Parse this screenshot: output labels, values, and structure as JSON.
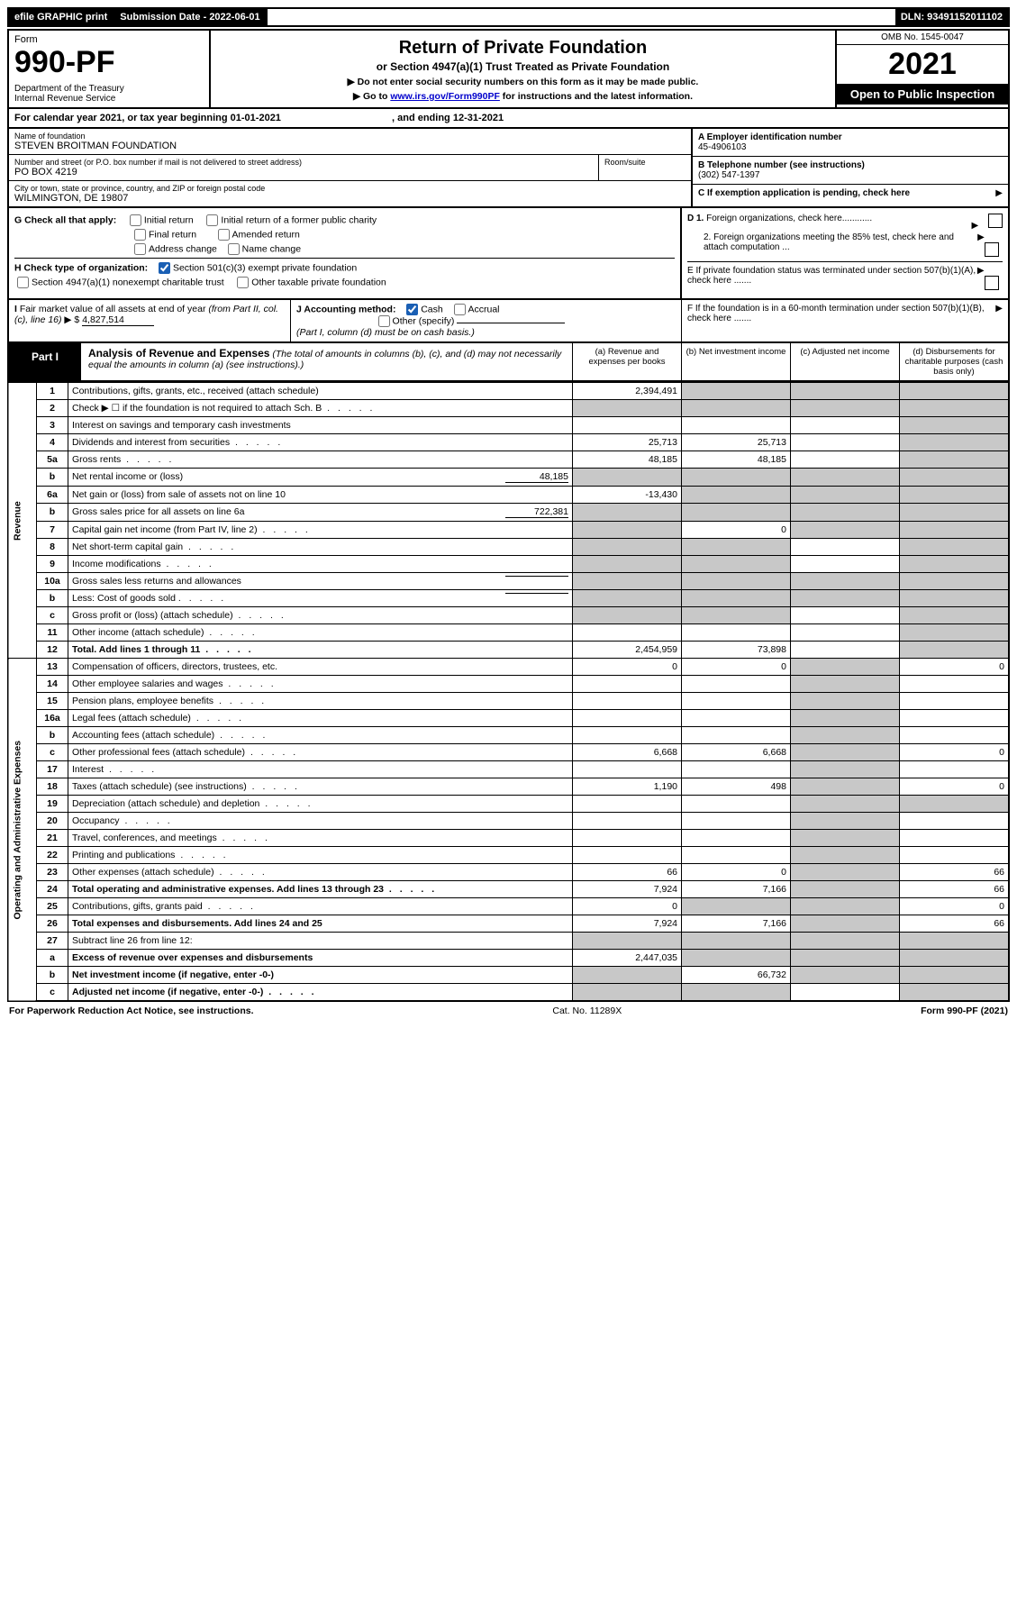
{
  "top": {
    "efile": "efile GRAPHIC print",
    "subdate_label": "Submission Date - 2022-06-01",
    "dln": "DLN: 93491152011102"
  },
  "header": {
    "form_word": "Form",
    "form_num": "990-PF",
    "dept1": "Department of the Treasury",
    "dept2": "Internal Revenue Service",
    "title": "Return of Private Foundation",
    "subtitle": "or Section 4947(a)(1) Trust Treated as Private Foundation",
    "note1": "▶ Do not enter social security numbers on this form as it may be made public.",
    "note2_pre": "▶ Go to ",
    "note2_link": "www.irs.gov/Form990PF",
    "note2_post": " for instructions and the latest information.",
    "omb": "OMB No. 1545-0047",
    "year": "2021",
    "open": "Open to Public Inspection"
  },
  "calendar": {
    "text_pre": "For calendar year 2021, or tax year beginning ",
    "begin": "01-01-2021",
    "mid": " , and ending ",
    "end": "12-31-2021"
  },
  "entity": {
    "name_label": "Name of foundation",
    "name": "STEVEN BROITMAN FOUNDATION",
    "addr_label": "Number and street (or P.O. box number if mail is not delivered to street address)",
    "addr": "PO BOX 4219",
    "room_label": "Room/suite",
    "city_label": "City or town, state or province, country, and ZIP or foreign postal code",
    "city": "WILMINGTON, DE  19807",
    "a_label": "A Employer identification number",
    "a_val": "45-4906103",
    "b_label": "B Telephone number (see instructions)",
    "b_val": "(302) 547-1397",
    "c_label": "C If exemption application is pending, check here"
  },
  "checks": {
    "g_label": "G Check all that apply:",
    "g1": "Initial return",
    "g2": "Initial return of a former public charity",
    "g3": "Final return",
    "g4": "Amended return",
    "g5": "Address change",
    "g6": "Name change",
    "h_label": "H Check type of organization:",
    "h1": "Section 501(c)(3) exempt private foundation",
    "h2": "Section 4947(a)(1) nonexempt charitable trust",
    "h3": "Other taxable private foundation",
    "d1": "D 1. Foreign organizations, check here............",
    "d2": "2. Foreign organizations meeting the 85% test, check here and attach computation ...",
    "e": "E  If private foundation status was terminated under section 507(b)(1)(A), check here .......",
    "i_label": "I Fair market value of all assets at end of year (from Part II, col. (c), line 16)",
    "i_val": "4,827,514",
    "j_label": "J Accounting method:",
    "j1": "Cash",
    "j2": "Accrual",
    "j3": "Other (specify)",
    "j_note": "(Part I, column (d) must be on cash basis.)",
    "f": "F  If the foundation is in a 60-month termination under section 507(b)(1)(B), check here ......."
  },
  "part1": {
    "label": "Part I",
    "title": "Analysis of Revenue and Expenses",
    "subtitle": " (The total of amounts in columns (b), (c), and (d) may not necessarily equal the amounts in column (a) (see instructions).)",
    "col_a": "(a)   Revenue and expenses per books",
    "col_b": "(b)   Net investment income",
    "col_c": "(c)   Adjusted net income",
    "col_d": "(d)   Disbursements for charitable purposes (cash basis only)"
  },
  "side": {
    "revenue": "Revenue",
    "expenses": "Operating and Administrative Expenses"
  },
  "rows": [
    {
      "n": "1",
      "d": "Contributions, gifts, grants, etc., received (attach schedule)",
      "a": "2,394,491",
      "b": "g",
      "c": "g",
      "e": "g"
    },
    {
      "n": "2",
      "d": "Check ▶ ☐ if the foundation is not required to attach Sch. B",
      "a": "g",
      "b": "g",
      "c": "g",
      "e": "g",
      "dots": true
    },
    {
      "n": "3",
      "d": "Interest on savings and temporary cash investments",
      "a": "",
      "b": "",
      "c": "",
      "e": "g"
    },
    {
      "n": "4",
      "d": "Dividends and interest from securities",
      "a": "25,713",
      "b": "25,713",
      "c": "",
      "e": "g",
      "dots": true
    },
    {
      "n": "5a",
      "d": "Gross rents",
      "a": "48,185",
      "b": "48,185",
      "c": "",
      "e": "g",
      "dots": true
    },
    {
      "n": "b",
      "d": "Net rental income or (loss)",
      "inline": "48,185",
      "a": "g",
      "b": "g",
      "c": "g",
      "e": "g"
    },
    {
      "n": "6a",
      "d": "Net gain or (loss) from sale of assets not on line 10",
      "a": "-13,430",
      "b": "g",
      "c": "g",
      "e": "g"
    },
    {
      "n": "b",
      "d": "Gross sales price for all assets on line 6a",
      "inline": "722,381",
      "a": "g",
      "b": "g",
      "c": "g",
      "e": "g"
    },
    {
      "n": "7",
      "d": "Capital gain net income (from Part IV, line 2)",
      "a": "g",
      "b": "0",
      "c": "g",
      "e": "g",
      "dots": true
    },
    {
      "n": "8",
      "d": "Net short-term capital gain",
      "a": "g",
      "b": "g",
      "c": "",
      "e": "g",
      "dots": true
    },
    {
      "n": "9",
      "d": "Income modifications",
      "a": "g",
      "b": "g",
      "c": "",
      "e": "g",
      "dots": true
    },
    {
      "n": "10a",
      "d": "Gross sales less returns and allowances",
      "inline": "",
      "a": "g",
      "b": "g",
      "c": "g",
      "e": "g"
    },
    {
      "n": "b",
      "d": "Less: Cost of goods sold",
      "inline": "",
      "a": "g",
      "b": "g",
      "c": "g",
      "e": "g",
      "dots": true
    },
    {
      "n": "c",
      "d": "Gross profit or (loss) (attach schedule)",
      "a": "g",
      "b": "g",
      "c": "",
      "e": "g",
      "dots": true
    },
    {
      "n": "11",
      "d": "Other income (attach schedule)",
      "a": "",
      "b": "",
      "c": "",
      "e": "g",
      "dots": true
    },
    {
      "n": "12",
      "d": "Total. Add lines 1 through 11",
      "a": "2,454,959",
      "b": "73,898",
      "c": "",
      "e": "g",
      "bold": true,
      "dots": true
    }
  ],
  "exp_rows": [
    {
      "n": "13",
      "d": "Compensation of officers, directors, trustees, etc.",
      "a": "0",
      "b": "0",
      "c": "g",
      "e": "0"
    },
    {
      "n": "14",
      "d": "Other employee salaries and wages",
      "a": "",
      "b": "",
      "c": "g",
      "e": "",
      "dots": true
    },
    {
      "n": "15",
      "d": "Pension plans, employee benefits",
      "a": "",
      "b": "",
      "c": "g",
      "e": "",
      "dots": true
    },
    {
      "n": "16a",
      "d": "Legal fees (attach schedule)",
      "a": "",
      "b": "",
      "c": "g",
      "e": "",
      "dots": true
    },
    {
      "n": "b",
      "d": "Accounting fees (attach schedule)",
      "a": "",
      "b": "",
      "c": "g",
      "e": "",
      "dots": true
    },
    {
      "n": "c",
      "d": "Other professional fees (attach schedule)",
      "a": "6,668",
      "b": "6,668",
      "c": "g",
      "e": "0",
      "dots": true
    },
    {
      "n": "17",
      "d": "Interest",
      "a": "",
      "b": "",
      "c": "g",
      "e": "",
      "dots": true
    },
    {
      "n": "18",
      "d": "Taxes (attach schedule) (see instructions)",
      "a": "1,190",
      "b": "498",
      "c": "g",
      "e": "0",
      "dots": true
    },
    {
      "n": "19",
      "d": "Depreciation (attach schedule) and depletion",
      "a": "",
      "b": "",
      "c": "g",
      "e": "g",
      "dots": true
    },
    {
      "n": "20",
      "d": "Occupancy",
      "a": "",
      "b": "",
      "c": "g",
      "e": "",
      "dots": true
    },
    {
      "n": "21",
      "d": "Travel, conferences, and meetings",
      "a": "",
      "b": "",
      "c": "g",
      "e": "",
      "dots": true
    },
    {
      "n": "22",
      "d": "Printing and publications",
      "a": "",
      "b": "",
      "c": "g",
      "e": "",
      "dots": true
    },
    {
      "n": "23",
      "d": "Other expenses (attach schedule)",
      "a": "66",
      "b": "0",
      "c": "g",
      "e": "66",
      "dots": true
    },
    {
      "n": "24",
      "d": "Total operating and administrative expenses. Add lines 13 through 23",
      "a": "7,924",
      "b": "7,166",
      "c": "g",
      "e": "66",
      "bold": true,
      "dots": true
    },
    {
      "n": "25",
      "d": "Contributions, gifts, grants paid",
      "a": "0",
      "b": "g",
      "c": "g",
      "e": "0",
      "dots": true
    },
    {
      "n": "26",
      "d": "Total expenses and disbursements. Add lines 24 and 25",
      "a": "7,924",
      "b": "7,166",
      "c": "g",
      "e": "66",
      "bold": true
    },
    {
      "n": "27",
      "d": "Subtract line 26 from line 12:",
      "a": "g",
      "b": "g",
      "c": "g",
      "e": "g"
    },
    {
      "n": "a",
      "d": "Excess of revenue over expenses and disbursements",
      "a": "2,447,035",
      "b": "g",
      "c": "g",
      "e": "g",
      "bold": true
    },
    {
      "n": "b",
      "d": "Net investment income (if negative, enter -0-)",
      "a": "g",
      "b": "66,732",
      "c": "g",
      "e": "g",
      "bold": true
    },
    {
      "n": "c",
      "d": "Adjusted net income (if negative, enter -0-)",
      "a": "g",
      "b": "g",
      "c": "",
      "e": "g",
      "bold": true,
      "dots": true
    }
  ],
  "footer": {
    "left": "For Paperwork Reduction Act Notice, see instructions.",
    "mid": "Cat. No. 11289X",
    "right": "Form 990-PF (2021)"
  }
}
